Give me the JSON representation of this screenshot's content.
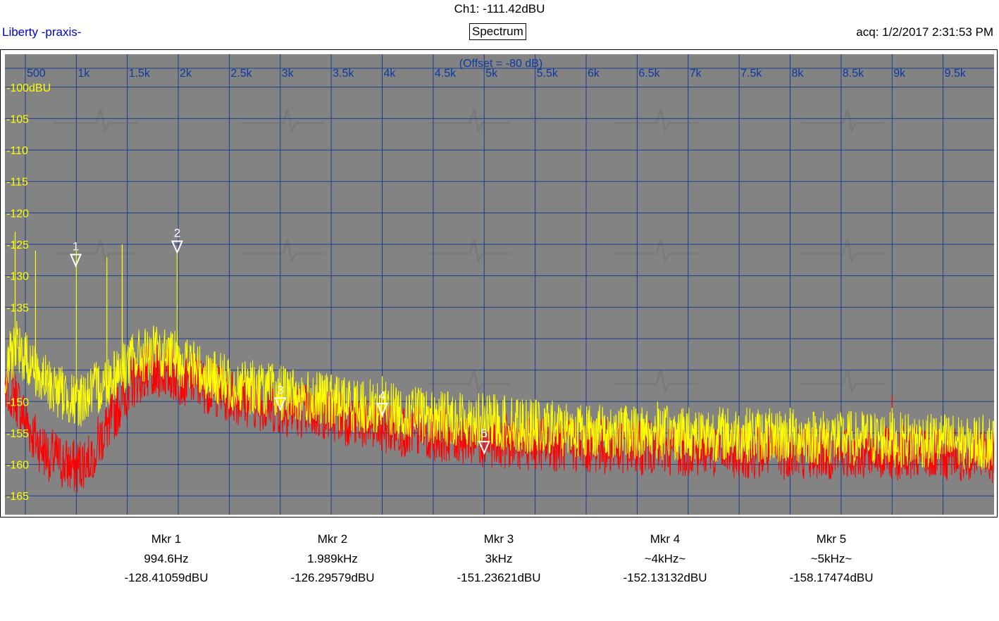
{
  "header": {
    "channel_readout": "Ch1: -111.42dBU",
    "app_title": "Liberty -praxis-",
    "mode": "Spectrum",
    "acquired": "acq: 1/2/2017 2:31:53 PM"
  },
  "colors": {
    "plot_background": "#838383",
    "grid": "#1a3d8f",
    "ch1_trace": "#ffff00",
    "ch2_trace": "#ff0000",
    "y_tick_text": "#ffff00",
    "x_tick_text": "#0b3aa3",
    "marker": "#ffffff"
  },
  "chart_data": {
    "type": "line",
    "offset_note": "(Offset = -80 dB)",
    "xlim": [
      300,
      10000
    ],
    "ylim": [
      -168,
      -97
    ],
    "x_ticks": [
      500,
      1000,
      1500,
      2000,
      2500,
      3000,
      3500,
      4000,
      4500,
      5000,
      5500,
      6000,
      6500,
      7000,
      7500,
      8000,
      8500,
      9000,
      9500
    ],
    "x_tick_labels": [
      "500",
      "1k",
      "1.5k",
      "2k",
      "2.5k",
      "3k",
      "3.5k",
      "4k",
      "4.5k",
      "5k",
      "5.5k",
      "6k",
      "6.5k",
      "7k",
      "7.5k",
      "8k",
      "8.5k",
      "9k",
      "9.5k"
    ],
    "y_ticks": [
      -100,
      -105,
      -110,
      -115,
      -120,
      -125,
      -130,
      -135,
      -140,
      -145,
      -150,
      -155,
      -160,
      -165
    ],
    "y_tick_labels": [
      "-100dBU",
      "-105",
      "-110",
      "-115",
      "-120",
      "-125",
      "-130",
      "-135",
      "",
      "",
      "-150",
      "-155",
      "-160",
      "-165"
    ],
    "grid": true,
    "series": [
      {
        "color": "#ffff00",
        "x": [
          300,
          400,
          500,
          600,
          700,
          800,
          900,
          1000,
          1100,
          1200,
          1400,
          1600,
          1800,
          2000,
          2200,
          2500,
          3000,
          3500,
          4000,
          4500,
          5000,
          5500,
          6000,
          7000,
          8000,
          9000,
          10000
        ],
        "y": [
          -145,
          -141,
          -143,
          -145,
          -147,
          -148,
          -149,
          -150,
          -149,
          -148,
          -145,
          -143,
          -142,
          -143,
          -145,
          -147,
          -148.5,
          -150,
          -151,
          -152.5,
          -153,
          -154,
          -154.5,
          -155,
          -155.5,
          -156,
          -156.5
        ],
        "spikes": [
          {
            "x": 400,
            "y": -123
          },
          {
            "x": 600,
            "y": -126
          },
          {
            "x": 1000,
            "y": -126
          },
          {
            "x": 1300,
            "y": -127
          },
          {
            "x": 1450,
            "y": -125
          },
          {
            "x": 1989,
            "y": -126.3
          },
          {
            "x": 3000,
            "y": -147
          },
          {
            "x": 4000,
            "y": -146
          },
          {
            "x": 5200,
            "y": -149
          },
          {
            "x": 6700,
            "y": -150
          },
          {
            "x": 8000,
            "y": -151
          },
          {
            "x": 9000,
            "y": -151
          }
        ]
      },
      {
        "color": "#ff0000",
        "x": [
          300,
          400,
          500,
          600,
          700,
          800,
          900,
          1000,
          1100,
          1200,
          1300,
          1400,
          1500,
          1600,
          1800,
          2000,
          2200,
          2500,
          3000,
          3500,
          4000,
          4500,
          5000,
          6000,
          7000,
          8000,
          9000,
          10000
        ],
        "y": [
          -147,
          -149,
          -153,
          -156,
          -158,
          -159,
          -160,
          -160.5,
          -159,
          -157,
          -154,
          -151,
          -148,
          -146,
          -145,
          -146,
          -147,
          -149,
          -151,
          -152,
          -154,
          -155,
          -156,
          -157,
          -157.5,
          -158,
          -158,
          -158.5
        ],
        "spikes": [
          {
            "x": 9000,
            "y": -149
          }
        ]
      }
    ],
    "markers": [
      {
        "label": "1",
        "x": 994.6,
        "y": -128.41
      },
      {
        "label": "2",
        "x": 1989,
        "y": -126.3
      },
      {
        "label": "3",
        "x": 3000,
        "y": -151.24
      },
      {
        "label": "4",
        "x": 4000,
        "y": -152.13
      },
      {
        "label": "5",
        "x": 5000,
        "y": -158.17
      }
    ]
  },
  "marker_table": [
    {
      "name": "Mkr 1",
      "freq": "994.6Hz",
      "level": "-128.41059dBU"
    },
    {
      "name": "Mkr 2",
      "freq": "1.989kHz",
      "level": "-126.29579dBU"
    },
    {
      "name": "Mkr 3",
      "freq": "3kHz",
      "level": "-151.23621dBU"
    },
    {
      "name": "Mkr 4",
      "freq": "~4kHz~",
      "level": "-152.13132dBU"
    },
    {
      "name": "Mkr 5",
      "freq": "~5kHz~",
      "level": "-158.17474dBU"
    }
  ]
}
